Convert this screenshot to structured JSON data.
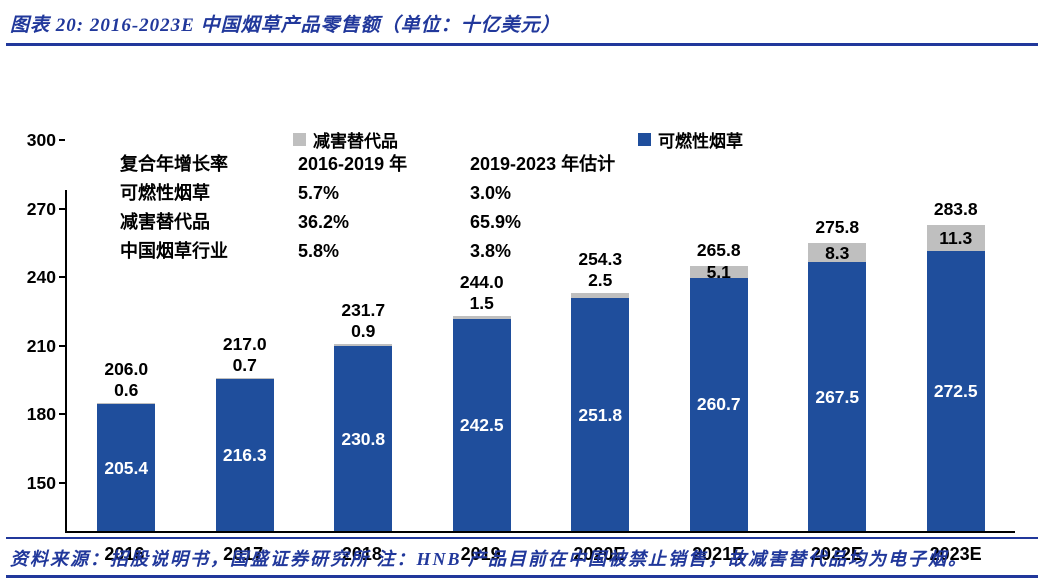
{
  "header": {
    "title": "图表 20:  2016-2023E 中国烟草产品零售额（单位：十亿美元）"
  },
  "footer": {
    "text": "资料来源：招股说明书，国盛证券研究所  注：HNB 产品目前在中国被禁止销售，故减害替代品均为电子烟。"
  },
  "colors": {
    "navy": "#21389b",
    "bar_blue": "#1f4e9c",
    "bar_gray": "#bfbfbf",
    "axis": "#000000"
  },
  "chart_data": {
    "type": "bar",
    "stacked": true,
    "title": "2016-2023E 中国烟草产品零售额（单位：十亿美元）",
    "categories": [
      "2016",
      "2017",
      "2018",
      "2019",
      "2020E",
      "2021E",
      "2022E",
      "2023E"
    ],
    "series": [
      {
        "name": "可燃性烟草",
        "color": "#1f4e9c",
        "values": [
          205.4,
          216.3,
          230.8,
          242.5,
          251.8,
          260.7,
          267.5,
          272.5
        ]
      },
      {
        "name": "减害替代品",
        "color": "#bfbfbf",
        "values": [
          0.6,
          0.7,
          0.9,
          1.5,
          2.5,
          5.1,
          8.3,
          11.3
        ]
      }
    ],
    "totals": [
      206.0,
      217.0,
      231.7,
      244.0,
      254.3,
      265.8,
      275.8,
      283.8
    ],
    "ylim": [
      150,
      300
    ],
    "yticks": [
      150,
      180,
      210,
      240,
      270,
      300
    ],
    "grid": false,
    "legend_position": "top",
    "legend": [
      "减害替代品",
      "可燃性烟草"
    ],
    "annotation_table": {
      "rows": [
        [
          "复合年增长率",
          "2016-2019 年",
          "2019-2023 年估计"
        ],
        [
          "可燃性烟草",
          "5.7%",
          "3.0%"
        ],
        [
          "减害替代品",
          "36.2%",
          "65.9%"
        ],
        [
          "中国烟草行业",
          "5.8%",
          "3.8%"
        ]
      ]
    }
  }
}
